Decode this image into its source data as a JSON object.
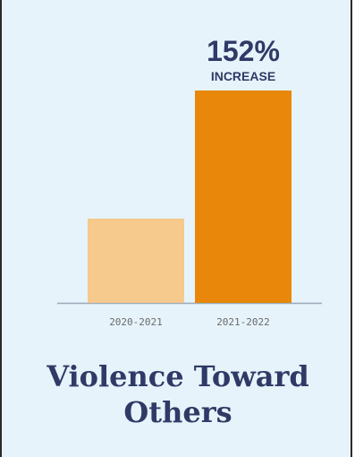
{
  "chart_data": {
    "type": "bar",
    "categories": [
      "2020-2021",
      "2021-2022"
    ],
    "values": [
      100,
      252
    ],
    "colors": [
      "#f6c98d",
      "#e8870a"
    ],
    "annotation": {
      "category": "2021-2022",
      "value_text": "152%",
      "label_text": "INCREASE"
    },
    "title_lines": [
      "Violence Toward",
      "Others"
    ],
    "ylim": [
      0,
      252
    ],
    "grid": false,
    "legend": "none"
  },
  "style": {
    "axis_color": "#9aaab7",
    "text_color": "#2f3a66",
    "tick_color": "#6b6b6b"
  }
}
